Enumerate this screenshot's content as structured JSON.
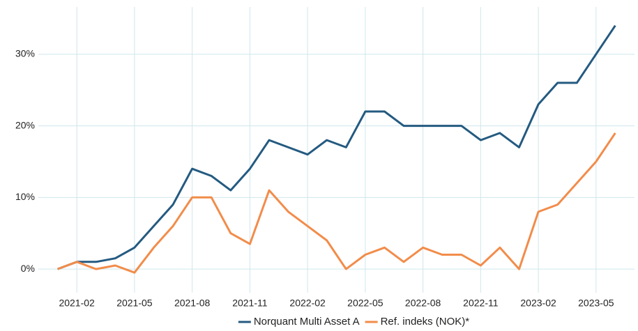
{
  "chart_data": {
    "type": "line",
    "x": [
      "2021-01",
      "2021-02",
      "2021-03",
      "2021-04",
      "2021-05",
      "2021-06",
      "2021-07",
      "2021-08",
      "2021-09",
      "2021-10",
      "2021-11",
      "2021-12",
      "2022-01",
      "2022-02",
      "2022-03",
      "2022-04",
      "2022-05",
      "2022-06",
      "2022-07",
      "2022-08",
      "2022-09",
      "2022-10",
      "2022-11",
      "2022-12",
      "2023-01",
      "2023-02",
      "2023-03",
      "2023-04",
      "2023-05",
      "2023-06"
    ],
    "series": [
      {
        "name": "Norquant Multi Asset A",
        "color": "#245a80",
        "values": [
          0,
          1,
          1,
          1.5,
          3,
          6,
          9,
          14,
          13,
          11,
          14,
          18,
          17,
          16,
          18,
          17,
          22,
          22,
          20,
          20,
          20,
          20,
          18,
          19,
          17,
          23,
          26,
          26,
          30,
          34
        ]
      },
      {
        "name": "Ref. indeks (NOK)*",
        "color": "#f28c4a",
        "values": [
          0,
          1,
          0,
          0.5,
          -0.5,
          3,
          6,
          10,
          10,
          5,
          3.5,
          11,
          8,
          6,
          4,
          0,
          2,
          3,
          1,
          3,
          2,
          2,
          0.5,
          3,
          0,
          8,
          9,
          12,
          15,
          19
        ]
      }
    ],
    "xlim": [
      "2020-12",
      "2023-07"
    ],
    "xticks": [
      "2021-02",
      "2021-05",
      "2021-08",
      "2021-11",
      "2022-02",
      "2022-05",
      "2022-08",
      "2022-11",
      "2023-02",
      "2023-05"
    ],
    "ylim": [
      -3.3,
      36.6
    ],
    "yticks": [
      {
        "value": 0,
        "label": "0%"
      },
      {
        "value": 10,
        "label": "10%"
      },
      {
        "value": 20,
        "label": "20%"
      },
      {
        "value": 30,
        "label": "30%"
      }
    ],
    "grid": true,
    "legend": "bottom"
  }
}
